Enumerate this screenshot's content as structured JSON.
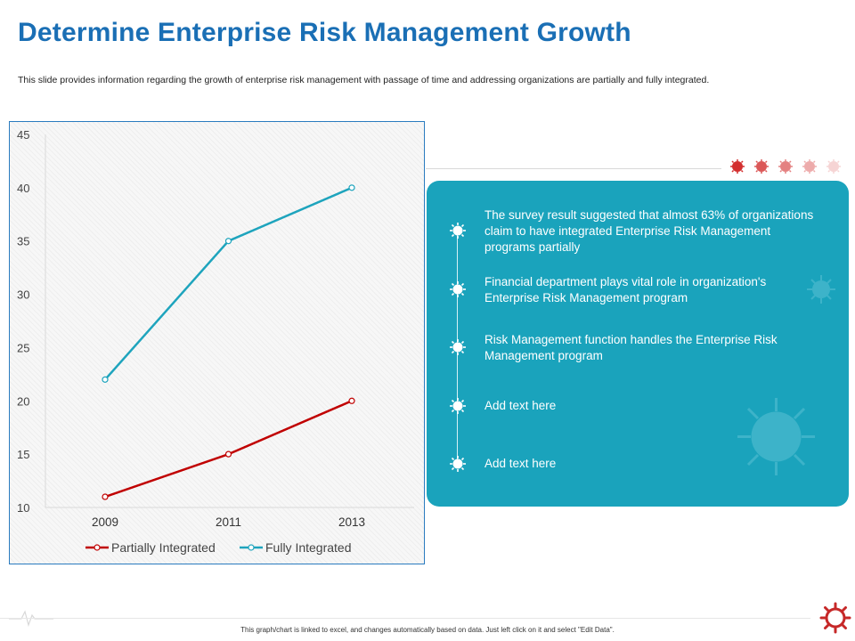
{
  "title": "Determine Enterprise Risk Management Growth",
  "subtitle": "This slide provides information regarding the growth of enterprise risk management with passage of time and addressing organizations are partially and fully integrated.",
  "chart_data": {
    "type": "line",
    "title": "",
    "xlabel": "",
    "ylabel": "",
    "categories": [
      "2009",
      "2011",
      "2013"
    ],
    "ylim": [
      10,
      45
    ],
    "yticks": [
      10,
      15,
      20,
      25,
      30,
      35,
      40,
      45
    ],
    "grid": false,
    "legend": "bottom",
    "series": [
      {
        "name": "Partially Integrated",
        "values": [
          11,
          15,
          20
        ],
        "color": "#c00000"
      },
      {
        "name": "Fully Integrated",
        "values": [
          22,
          35,
          40
        ],
        "color": "#1ea4bd"
      }
    ]
  },
  "panel": {
    "color": "#1aa3bc",
    "items": [
      {
        "text": "The survey result suggested that almost 63% of organizations claim to have integrated Enterprise Risk Management programs partially"
      },
      {
        "text": "Financial department plays vital role in organization's Enterprise Risk Management program"
      },
      {
        "text": "Risk Management function handles the Enterprise Risk Management program"
      },
      {
        "text": "Add text here"
      },
      {
        "text": "Add text here"
      }
    ]
  },
  "footer": {
    "note": "This graph/chart is linked to excel, and changes automatically based on data. Just left click on it and select \"Edit Data\"."
  },
  "colors": {
    "accent": "#1a6fb5",
    "virus_red": "#d32f2f"
  }
}
